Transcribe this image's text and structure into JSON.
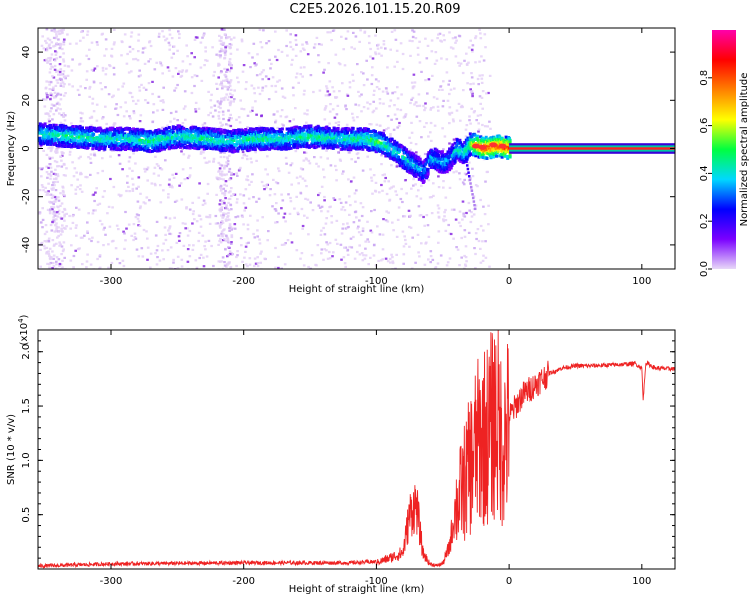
{
  "title": "C2E5.2026.101.15.20.R09",
  "chart_data": [
    {
      "type": "heatmap",
      "panel": "spectrogram",
      "xlabel": "Height of straight line (km)",
      "ylabel": "Frequency (Hz)",
      "xlim": [
        -355,
        125
      ],
      "ylim": [
        -50,
        50
      ],
      "xticks": [
        -300,
        -200,
        -100,
        0,
        100
      ],
      "xtick_labels": [
        "-300",
        "-200",
        "-100",
        "0",
        "100"
      ],
      "yticks": [
        -40,
        -20,
        0,
        20,
        40
      ],
      "ytick_labels": [
        "-40",
        "-20",
        "0",
        "20",
        "40"
      ],
      "colorbar": {
        "label": "Normalized spectral amplitude",
        "range": [
          0,
          1
        ],
        "ticks": [
          0.0,
          0.2,
          0.4,
          0.6,
          0.8
        ],
        "tick_labels": [
          "0.0",
          "0.2",
          "0.4",
          "0.6",
          "0.8"
        ],
        "colors": [
          "#e8d8f8",
          "#7a00ff",
          "#0000ff",
          "#00d8ff",
          "#00ff40",
          "#ffff00",
          "#ff8000",
          "#ff0000",
          "#ff00aa"
        ]
      },
      "ridge_x": [
        -355,
        -330,
        -310,
        -290,
        -270,
        -250,
        -230,
        -210,
        -190,
        -170,
        -150,
        -130,
        -110,
        -100,
        -90,
        -80,
        -70,
        -65,
        -60,
        -55,
        -50,
        -45,
        -40,
        -35,
        -30,
        -25,
        -20,
        -10,
        0,
        20,
        60,
        100,
        125
      ],
      "ridge_y": [
        6,
        5,
        4,
        4,
        3,
        5,
        4,
        3,
        4,
        4,
        5,
        4,
        4,
        3,
        0,
        -4,
        -8,
        -10,
        -4,
        -5,
        -6,
        -4,
        0,
        -2,
        2,
        1,
        0,
        1,
        0,
        0,
        0,
        0,
        0
      ],
      "ridge_amplitude": [
        0.45,
        0.5,
        0.45,
        0.45,
        0.5,
        0.45,
        0.5,
        0.45,
        0.5,
        0.45,
        0.5,
        0.45,
        0.5,
        0.55,
        0.45,
        0.45,
        0.4,
        0.35,
        0.4,
        0.4,
        0.4,
        0.35,
        0.5,
        0.45,
        0.6,
        0.8,
        0.9,
        0.85,
        0.9,
        0.9,
        0.9,
        0.9,
        0.9
      ]
    },
    {
      "type": "line",
      "panel": "snr",
      "xlabel": "Height of straight line (km)",
      "ylabel": "SNR (10 * v/v)",
      "yscale_label": "(x10",
      "yscale_exp": "4",
      "yscale_close": ")",
      "xlim": [
        -355,
        125
      ],
      "ylim": [
        0,
        2.2
      ],
      "xticks": [
        -300,
        -200,
        -100,
        0,
        100
      ],
      "xtick_labels": [
        "-300",
        "-200",
        "-100",
        "0",
        "100"
      ],
      "yticks": [
        0.5,
        1.0,
        1.5,
        2.0
      ],
      "ytick_labels": [
        "0.5",
        "1.0",
        "1.5",
        "2.0"
      ],
      "color": "#ee2222",
      "series": [
        {
          "name": "SNR",
          "x": [
            -355,
            -300,
            -200,
            -120,
            -100,
            -90,
            -80,
            -75,
            -70,
            -65,
            -60,
            -55,
            -50,
            -45,
            -40,
            -35,
            -30,
            -25,
            -20,
            -15,
            -10,
            -5,
            0,
            10,
            20,
            30,
            40,
            50,
            60,
            80,
            95,
            100,
            101,
            103,
            110,
            125
          ],
          "y": [
            0.02,
            0.04,
            0.05,
            0.05,
            0.06,
            0.1,
            0.15,
            0.5,
            0.6,
            0.15,
            0.05,
            0.03,
            0.05,
            0.2,
            0.6,
            0.8,
            1.0,
            1.2,
            1.3,
            1.35,
            1.5,
            1.25,
            1.4,
            1.6,
            1.7,
            1.8,
            1.85,
            1.87,
            1.87,
            1.88,
            1.89,
            1.85,
            1.55,
            1.9,
            1.85,
            1.84
          ]
        }
      ]
    }
  ]
}
